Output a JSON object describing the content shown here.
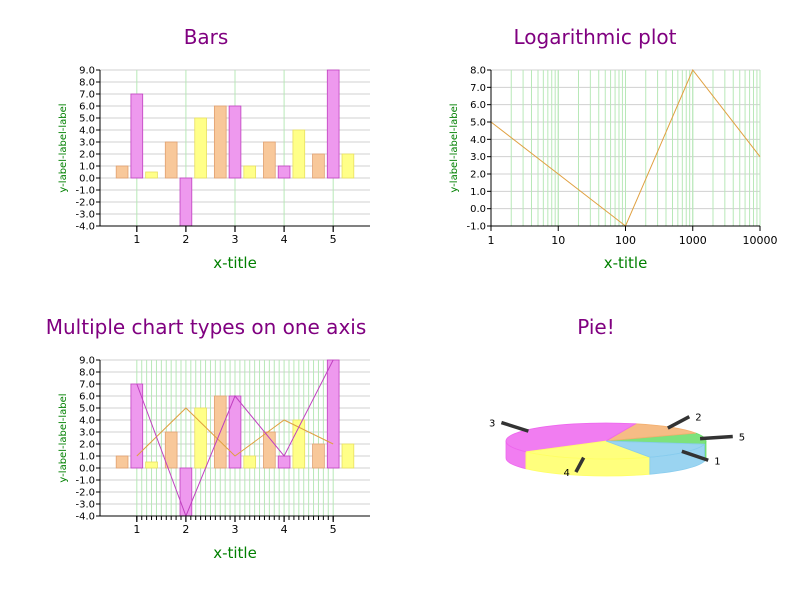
{
  "chart_data": [
    {
      "type": "bar",
      "title": "Bars",
      "xlabel": "x-title",
      "ylabel": "y-label-label-label",
      "ylim": [
        -4,
        9
      ],
      "xticks": [
        "1",
        "2",
        "3",
        "4",
        "5"
      ],
      "series": [
        {
          "values": [
            1,
            3,
            6,
            3,
            2
          ]
        },
        {
          "values": [
            7,
            -4,
            6,
            1,
            9
          ]
        },
        {
          "values": [
            0.5,
            5,
            1,
            4,
            2
          ]
        }
      ]
    },
    {
      "type": "line",
      "title": "Logarithmic plot",
      "xlabel": "x-title",
      "ylabel": "y-label-label-label",
      "xscale": "log",
      "xlim": [
        1,
        10000
      ],
      "ylim": [
        -1,
        8
      ],
      "xticks": [
        "1",
        "10",
        "100",
        "1000",
        "10000"
      ],
      "x": [
        1,
        100,
        1000,
        10000
      ],
      "y": [
        5,
        -1,
        8,
        3
      ]
    },
    {
      "type": "bar",
      "title": "Multiple chart types on one axis",
      "xlabel": "x-title",
      "ylabel": "y-label-label-label",
      "ylim": [
        -4,
        9
      ],
      "xticks": [
        "1",
        "2",
        "3",
        "4",
        "5"
      ],
      "series": [
        {
          "values": [
            1,
            3,
            6,
            3,
            2
          ]
        },
        {
          "values": [
            7,
            -4,
            6,
            1,
            9
          ]
        },
        {
          "values": [
            0.5,
            5,
            1,
            4,
            2
          ]
        }
      ],
      "lines": [
        {
          "values": [
            1,
            5,
            1,
            4,
            2
          ]
        },
        {
          "values": [
            7,
            -4,
            6,
            1,
            9
          ]
        }
      ]
    },
    {
      "type": "pie",
      "title": "Pie!",
      "labels": [
        "1",
        "2",
        "3",
        "4",
        "5"
      ],
      "values": [
        15,
        13,
        40,
        22,
        10
      ]
    }
  ],
  "colors": {
    "title": "#800080",
    "axis_label": "#008000",
    "grid": "#b8e8b8",
    "hgrid": "#d0d0d0",
    "series": [
      "#f8c89a",
      "#ee99ee",
      "#ffff88"
    ],
    "series_stroke": [
      "#e0a070",
      "#c040c0",
      "#e8e060"
    ],
    "lines": [
      "#e0a040",
      "#c040c0"
    ],
    "pie": [
      "#88ccee",
      "#f4b070",
      "#ee66ee",
      "#ffff66",
      "#66dd66"
    ]
  }
}
